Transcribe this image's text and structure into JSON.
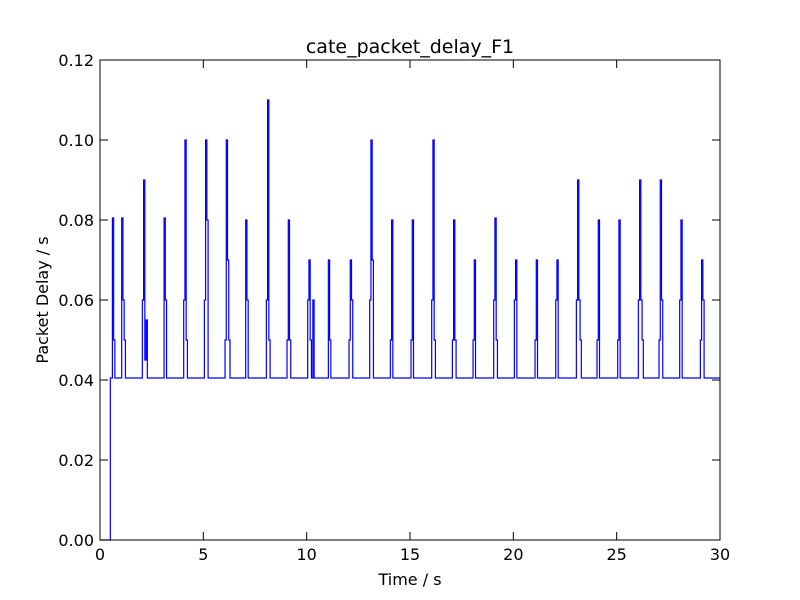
{
  "chart_data": {
    "type": "line",
    "title": "cate_packet_delay_F1",
    "xlabel": "Time / s",
    "ylabel": "Packet Delay / s",
    "xlim": [
      0,
      30
    ],
    "ylim": [
      0,
      0.12
    ],
    "x_ticks": [
      0,
      5,
      10,
      15,
      20,
      25,
      30
    ],
    "x_tick_labels": [
      "0",
      "5",
      "10",
      "15",
      "20",
      "25",
      "30"
    ],
    "y_ticks": [
      0,
      0.02,
      0.04,
      0.06,
      0.08,
      0.1,
      0.12
    ],
    "y_tick_labels": [
      "0.00",
      "0.02",
      "0.04",
      "0.06",
      "0.08",
      "0.10",
      "0.12"
    ],
    "grid": false,
    "legend": "none",
    "series_color": "#0000ff",
    "baseline": 0.0405,
    "start": {
      "x": 0.0,
      "y": 0.0,
      "rise_x": 0.5
    },
    "bursts": [
      {
        "t": 0.6,
        "levels": [
          0.0805,
          0.05
        ]
      },
      {
        "t": 1.05,
        "levels": [
          0.0805,
          0.06,
          0.05
        ]
      },
      {
        "t": 2.05,
        "levels": [
          0.06,
          0.09,
          0.045,
          0.055
        ]
      },
      {
        "t": 3.1,
        "levels": [
          0.0805,
          0.06
        ]
      },
      {
        "t": 4.05,
        "levels": [
          0.06,
          0.1,
          0.05
        ]
      },
      {
        "t": 5.05,
        "levels": [
          0.06,
          0.1,
          0.08
        ]
      },
      {
        "t": 6.05,
        "levels": [
          0.05,
          0.1,
          0.07,
          0.05
        ]
      },
      {
        "t": 7.05,
        "levels": [
          0.08,
          0.06
        ]
      },
      {
        "t": 8.05,
        "levels": [
          0.06,
          0.11,
          0.05
        ]
      },
      {
        "t": 9.05,
        "levels": [
          0.05,
          0.08,
          0.05
        ]
      },
      {
        "t": 10.05,
        "levels": [
          0.06,
          0.07,
          0.05
        ]
      },
      {
        "t": 10.3,
        "levels": [
          0.06
        ]
      },
      {
        "t": 11.05,
        "levels": [
          0.07,
          0.05
        ]
      },
      {
        "t": 12.05,
        "levels": [
          0.05,
          0.07,
          0.06
        ]
      },
      {
        "t": 13.05,
        "levels": [
          0.06,
          0.1,
          0.07
        ]
      },
      {
        "t": 14.05,
        "levels": [
          0.05,
          0.08
        ]
      },
      {
        "t": 15.05,
        "levels": [
          0.05,
          0.08
        ]
      },
      {
        "t": 16.05,
        "levels": [
          0.06,
          0.1,
          0.05
        ]
      },
      {
        "t": 17.05,
        "levels": [
          0.05,
          0.08,
          0.05
        ]
      },
      {
        "t": 18.05,
        "levels": [
          0.05,
          0.07
        ]
      },
      {
        "t": 19.05,
        "levels": [
          0.06,
          0.0805,
          0.05
        ]
      },
      {
        "t": 20.05,
        "levels": [
          0.06,
          0.07
        ]
      },
      {
        "t": 21.05,
        "levels": [
          0.05,
          0.07
        ]
      },
      {
        "t": 22.05,
        "levels": [
          0.06,
          0.07
        ]
      },
      {
        "t": 23.05,
        "levels": [
          0.06,
          0.09,
          0.06,
          0.05
        ]
      },
      {
        "t": 24.05,
        "levels": [
          0.05,
          0.08
        ]
      },
      {
        "t": 25.05,
        "levels": [
          0.05,
          0.08
        ]
      },
      {
        "t": 26.05,
        "levels": [
          0.06,
          0.09,
          0.06,
          0.05
        ]
      },
      {
        "t": 27.05,
        "levels": [
          0.05,
          0.09,
          0.06
        ]
      },
      {
        "t": 28.05,
        "levels": [
          0.06,
          0.08
        ]
      },
      {
        "t": 29.05,
        "levels": [
          0.05,
          0.07,
          0.06
        ]
      }
    ]
  }
}
